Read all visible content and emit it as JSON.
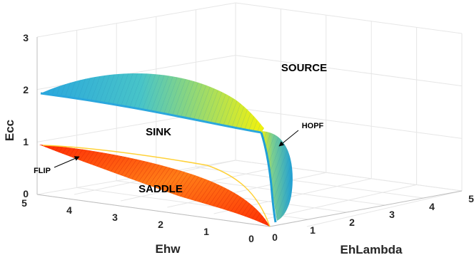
{
  "chart_data": {
    "type": "surface3d",
    "axes": {
      "x": {
        "label": "Ehw",
        "ticks": [
          "0",
          "1",
          "2",
          "3",
          "4",
          "5"
        ],
        "range": [
          0,
          5
        ]
      },
      "y": {
        "label": "EhLambda",
        "ticks": [
          "0",
          "1",
          "2",
          "3",
          "4",
          "5"
        ],
        "range": [
          0,
          5
        ]
      },
      "z": {
        "label": "Ecc",
        "ticks": [
          "0",
          "1",
          "2",
          "3"
        ],
        "range": [
          0,
          3
        ]
      }
    },
    "grid": true,
    "surfaces": [
      {
        "colormap": [
          "#2aa7dd",
          "#f4f20a"
        ],
        "boundary_points": [
          {
            "Ehw": 5,
            "EhLambda": 0,
            "Ecc": 1.9
          },
          {
            "Ehw": 0,
            "EhLambda": 0,
            "Ecc": 1.0
          },
          {
            "Ehw": 0,
            "EhLambda": 0.1,
            "Ecc": 0.0
          },
          {
            "Ehw": 0,
            "EhLambda": 0.4,
            "Ecc": 0.0
          }
        ]
      },
      {
        "colormap": [
          "#ff0a00",
          "#ffd51a"
        ],
        "boundary_points": [
          {
            "Ehw": 5,
            "EhLambda": 0,
            "Ecc": 0.95
          },
          {
            "Ehw": 0,
            "EhLambda": 0,
            "Ecc": 0.0
          }
        ]
      }
    ],
    "region_labels": [
      "SOURCE",
      "SINK",
      "SADDLE"
    ],
    "annotations": [
      {
        "text": "HOPF",
        "arrow": true
      },
      {
        "text": "FLIP",
        "arrow": true
      }
    ]
  }
}
